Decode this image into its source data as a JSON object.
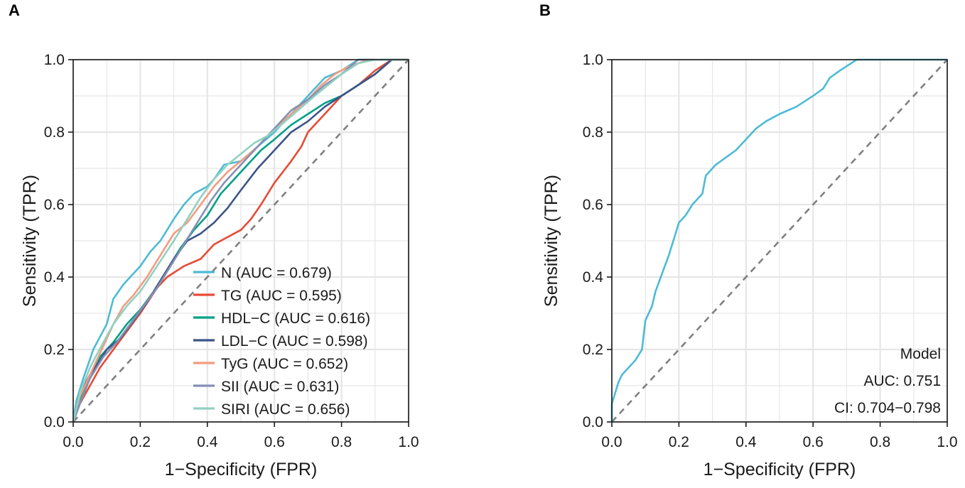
{
  "panels": {
    "a": {
      "label": "A"
    },
    "b": {
      "label": "B"
    }
  },
  "colors": {
    "N": "#4DBBD5",
    "TG": "#E64B35",
    "HDL-C": "#00A087",
    "LDL-C": "#3C5488",
    "TyG": "#F39B7F",
    "SII": "#8491B4",
    "SIRI": "#91D1C2",
    "Model": "#4DBBD5",
    "diagonal": "#808080",
    "grid": "#e6e6e6"
  },
  "chart_data": [
    {
      "type": "line",
      "panel": "A",
      "title": "",
      "xlabel": "1−Specificity (FPR)",
      "ylabel": "Sensitivity (TPR)",
      "xlim": [
        0,
        1
      ],
      "ylim": [
        0,
        1
      ],
      "xticks": [
        "0.0",
        "0.2",
        "0.4",
        "0.6",
        "0.8",
        "1.0"
      ],
      "yticks": [
        "0.0",
        "0.2",
        "0.4",
        "0.6",
        "0.8",
        "1.0"
      ],
      "grid": true,
      "legend_position": "bottom-right",
      "reference_line": [
        [
          0,
          0
        ],
        [
          1,
          1
        ]
      ],
      "series": [
        {
          "name": "N",
          "legend": "N (AUC = 0.679)",
          "color_key": "N",
          "points": [
            [
              0,
              0
            ],
            [
              0.01,
              0.06
            ],
            [
              0.03,
              0.12
            ],
            [
              0.06,
              0.2
            ],
            [
              0.1,
              0.27
            ],
            [
              0.12,
              0.34
            ],
            [
              0.15,
              0.38
            ],
            [
              0.18,
              0.41
            ],
            [
              0.2,
              0.43
            ],
            [
              0.23,
              0.47
            ],
            [
              0.26,
              0.5
            ],
            [
              0.28,
              0.53
            ],
            [
              0.3,
              0.56
            ],
            [
              0.33,
              0.6
            ],
            [
              0.36,
              0.63
            ],
            [
              0.4,
              0.65
            ],
            [
              0.42,
              0.67
            ],
            [
              0.45,
              0.71
            ],
            [
              0.5,
              0.72
            ],
            [
              0.55,
              0.76
            ],
            [
              0.6,
              0.8
            ],
            [
              0.65,
              0.85
            ],
            [
              0.7,
              0.9
            ],
            [
              0.75,
              0.95
            ],
            [
              0.8,
              0.97
            ],
            [
              0.85,
              1.0
            ],
            [
              1,
              1
            ]
          ]
        },
        {
          "name": "TG",
          "legend": "TG (AUC = 0.595)",
          "color_key": "TG",
          "points": [
            [
              0,
              0
            ],
            [
              0.02,
              0.05
            ],
            [
              0.05,
              0.1
            ],
            [
              0.08,
              0.15
            ],
            [
              0.12,
              0.2
            ],
            [
              0.16,
              0.25
            ],
            [
              0.2,
              0.3
            ],
            [
              0.25,
              0.37
            ],
            [
              0.28,
              0.4
            ],
            [
              0.33,
              0.43
            ],
            [
              0.38,
              0.45
            ],
            [
              0.42,
              0.49
            ],
            [
              0.46,
              0.51
            ],
            [
              0.5,
              0.53
            ],
            [
              0.53,
              0.56
            ],
            [
              0.56,
              0.6
            ],
            [
              0.6,
              0.66
            ],
            [
              0.65,
              0.72
            ],
            [
              0.68,
              0.76
            ],
            [
              0.7,
              0.8
            ],
            [
              0.75,
              0.85
            ],
            [
              0.8,
              0.9
            ],
            [
              0.85,
              0.93
            ],
            [
              0.9,
              0.97
            ],
            [
              0.95,
              1.0
            ],
            [
              1,
              1
            ]
          ]
        },
        {
          "name": "HDL-C",
          "legend": "HDL−C (AUC = 0.616)",
          "color_key": "HDL-C",
          "points": [
            [
              0,
              0
            ],
            [
              0.02,
              0.06
            ],
            [
              0.05,
              0.13
            ],
            [
              0.08,
              0.18
            ],
            [
              0.12,
              0.22
            ],
            [
              0.16,
              0.27
            ],
            [
              0.2,
              0.31
            ],
            [
              0.24,
              0.36
            ],
            [
              0.28,
              0.42
            ],
            [
              0.32,
              0.48
            ],
            [
              0.36,
              0.53
            ],
            [
              0.4,
              0.57
            ],
            [
              0.44,
              0.63
            ],
            [
              0.48,
              0.67
            ],
            [
              0.52,
              0.71
            ],
            [
              0.56,
              0.75
            ],
            [
              0.6,
              0.78
            ],
            [
              0.65,
              0.82
            ],
            [
              0.7,
              0.85
            ],
            [
              0.75,
              0.88
            ],
            [
              0.8,
              0.9
            ],
            [
              0.85,
              0.93
            ],
            [
              0.9,
              0.96
            ],
            [
              0.95,
              1.0
            ],
            [
              1,
              1
            ]
          ]
        },
        {
          "name": "LDL-C",
          "legend": "LDL−C (AUC = 0.598)",
          "color_key": "LDL-C",
          "points": [
            [
              0,
              0
            ],
            [
              0.02,
              0.08
            ],
            [
              0.05,
              0.13
            ],
            [
              0.08,
              0.17
            ],
            [
              0.1,
              0.2
            ],
            [
              0.14,
              0.23
            ],
            [
              0.18,
              0.28
            ],
            [
              0.22,
              0.33
            ],
            [
              0.26,
              0.39
            ],
            [
              0.3,
              0.45
            ],
            [
              0.34,
              0.5
            ],
            [
              0.38,
              0.52
            ],
            [
              0.42,
              0.55
            ],
            [
              0.46,
              0.59
            ],
            [
              0.5,
              0.64
            ],
            [
              0.55,
              0.7
            ],
            [
              0.6,
              0.75
            ],
            [
              0.65,
              0.8
            ],
            [
              0.7,
              0.83
            ],
            [
              0.75,
              0.87
            ],
            [
              0.8,
              0.9
            ],
            [
              0.85,
              0.93
            ],
            [
              0.9,
              0.96
            ],
            [
              0.95,
              1.0
            ],
            [
              1,
              1
            ]
          ]
        },
        {
          "name": "TyG",
          "legend": "TyG (AUC = 0.652)",
          "color_key": "TyG",
          "points": [
            [
              0,
              0
            ],
            [
              0.02,
              0.07
            ],
            [
              0.05,
              0.13
            ],
            [
              0.08,
              0.19
            ],
            [
              0.12,
              0.27
            ],
            [
              0.15,
              0.32
            ],
            [
              0.18,
              0.35
            ],
            [
              0.22,
              0.4
            ],
            [
              0.26,
              0.46
            ],
            [
              0.3,
              0.52
            ],
            [
              0.34,
              0.55
            ],
            [
              0.38,
              0.6
            ],
            [
              0.42,
              0.65
            ],
            [
              0.46,
              0.69
            ],
            [
              0.5,
              0.72
            ],
            [
              0.55,
              0.76
            ],
            [
              0.6,
              0.81
            ],
            [
              0.65,
              0.85
            ],
            [
              0.7,
              0.89
            ],
            [
              0.74,
              0.93
            ],
            [
              0.78,
              0.96
            ],
            [
              0.82,
              0.98
            ],
            [
              0.88,
              1.0
            ],
            [
              1,
              1
            ]
          ]
        },
        {
          "name": "SII",
          "legend": "SII (AUC = 0.631)",
          "color_key": "SII",
          "points": [
            [
              0,
              0
            ],
            [
              0.02,
              0.05
            ],
            [
              0.05,
              0.12
            ],
            [
              0.09,
              0.18
            ],
            [
              0.13,
              0.22
            ],
            [
              0.17,
              0.27
            ],
            [
              0.21,
              0.32
            ],
            [
              0.25,
              0.37
            ],
            [
              0.29,
              0.43
            ],
            [
              0.33,
              0.49
            ],
            [
              0.37,
              0.55
            ],
            [
              0.41,
              0.61
            ],
            [
              0.45,
              0.66
            ],
            [
              0.5,
              0.71
            ],
            [
              0.55,
              0.76
            ],
            [
              0.6,
              0.81
            ],
            [
              0.65,
              0.86
            ],
            [
              0.7,
              0.89
            ],
            [
              0.75,
              0.93
            ],
            [
              0.8,
              0.96
            ],
            [
              0.85,
              1.0
            ],
            [
              1,
              1
            ]
          ]
        },
        {
          "name": "SIRI",
          "legend": "SIRI (AUC = 0.656)",
          "color_key": "SIRI",
          "points": [
            [
              0,
              0
            ],
            [
              0.02,
              0.08
            ],
            [
              0.05,
              0.15
            ],
            [
              0.09,
              0.22
            ],
            [
              0.12,
              0.27
            ],
            [
              0.16,
              0.32
            ],
            [
              0.2,
              0.36
            ],
            [
              0.25,
              0.43
            ],
            [
              0.3,
              0.5
            ],
            [
              0.34,
              0.56
            ],
            [
              0.38,
              0.62
            ],
            [
              0.42,
              0.67
            ],
            [
              0.46,
              0.71
            ],
            [
              0.5,
              0.74
            ],
            [
              0.54,
              0.77
            ],
            [
              0.58,
              0.79
            ],
            [
              0.62,
              0.82
            ],
            [
              0.67,
              0.86
            ],
            [
              0.72,
              0.9
            ],
            [
              0.76,
              0.93
            ],
            [
              0.8,
              0.96
            ],
            [
              0.85,
              0.99
            ],
            [
              0.9,
              1.0
            ],
            [
              1,
              1
            ]
          ]
        }
      ]
    },
    {
      "type": "line",
      "panel": "B",
      "title": "",
      "xlabel": "1−Specificity (FPR)",
      "ylabel": "Sensitivity (TPR)",
      "xlim": [
        0,
        1
      ],
      "ylim": [
        0,
        1
      ],
      "xticks": [
        "0.0",
        "0.2",
        "0.4",
        "0.6",
        "0.8",
        "1.0"
      ],
      "yticks": [
        "0.0",
        "0.2",
        "0.4",
        "0.6",
        "0.8",
        "1.0"
      ],
      "grid": true,
      "reference_line": [
        [
          0,
          0
        ],
        [
          1,
          1
        ]
      ],
      "annotation": {
        "title": "Model",
        "auc": "AUC: 0.751",
        "ci": "CI: 0.704−0.798"
      },
      "series": [
        {
          "name": "Model",
          "color_key": "Model",
          "points": [
            [
              0,
              0
            ],
            [
              0,
              0.05
            ],
            [
              0.01,
              0.08
            ],
            [
              0.02,
              0.11
            ],
            [
              0.03,
              0.13
            ],
            [
              0.05,
              0.15
            ],
            [
              0.07,
              0.17
            ],
            [
              0.09,
              0.2
            ],
            [
              0.1,
              0.28
            ],
            [
              0.12,
              0.32
            ],
            [
              0.13,
              0.36
            ],
            [
              0.15,
              0.41
            ],
            [
              0.17,
              0.46
            ],
            [
              0.19,
              0.52
            ],
            [
              0.2,
              0.55
            ],
            [
              0.22,
              0.57
            ],
            [
              0.24,
              0.6
            ],
            [
              0.27,
              0.63
            ],
            [
              0.28,
              0.68
            ],
            [
              0.31,
              0.71
            ],
            [
              0.34,
              0.73
            ],
            [
              0.37,
              0.75
            ],
            [
              0.4,
              0.78
            ],
            [
              0.43,
              0.81
            ],
            [
              0.46,
              0.83
            ],
            [
              0.5,
              0.85
            ],
            [
              0.55,
              0.87
            ],
            [
              0.6,
              0.9
            ],
            [
              0.63,
              0.92
            ],
            [
              0.65,
              0.95
            ],
            [
              0.68,
              0.97
            ],
            [
              0.73,
              1.0
            ],
            [
              1,
              1
            ]
          ]
        }
      ]
    }
  ]
}
